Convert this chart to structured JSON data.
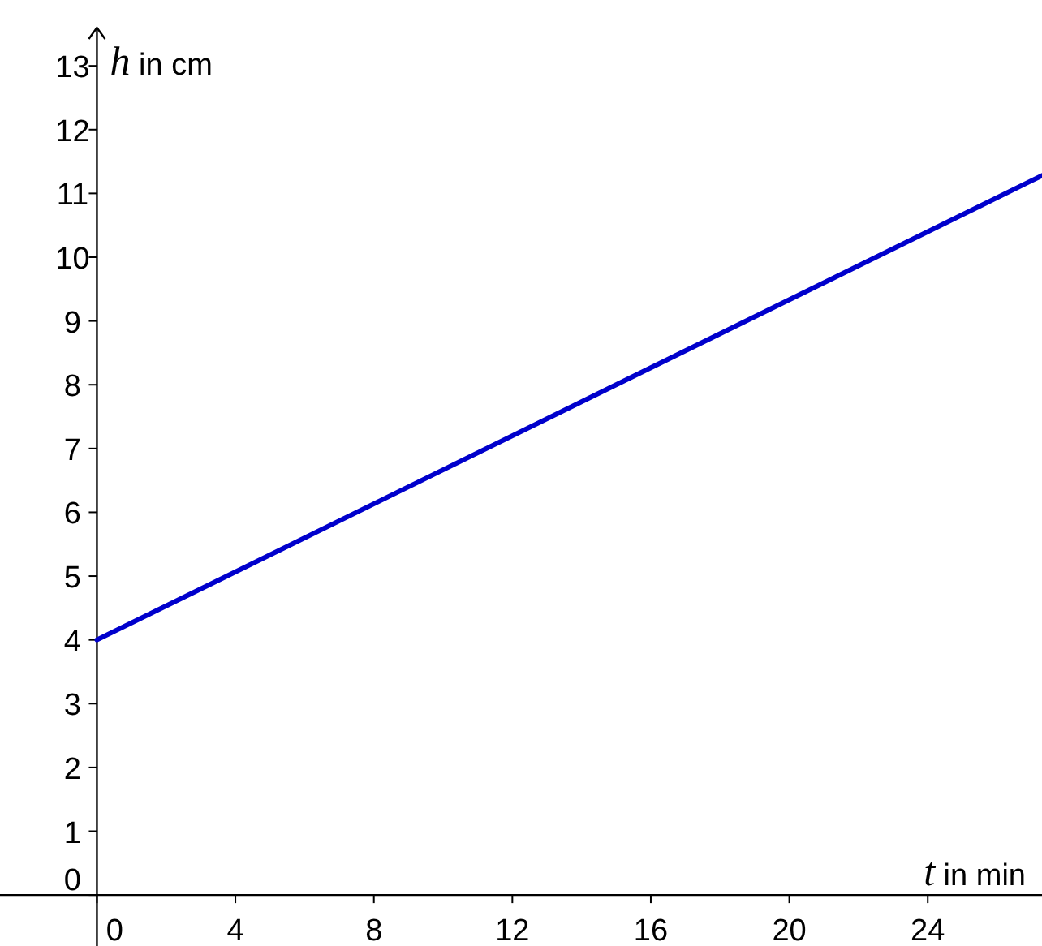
{
  "chart_data": {
    "type": "line",
    "xlabel": "t in min",
    "ylabel": "h in cm",
    "x": [
      0,
      27.3
    ],
    "series": [
      {
        "color": "#0000cc",
        "values": [
          4,
          11.28
        ]
      }
    ],
    "xlim": [
      -2.8,
      27.3
    ],
    "ylim": [
      -0.8,
      13.6
    ],
    "xticks": [
      0,
      4,
      8,
      12,
      16,
      20,
      24
    ],
    "yticks": [
      0,
      1,
      2,
      3,
      4,
      5,
      6,
      7,
      8,
      9,
      10,
      11,
      12,
      13
    ],
    "marker": "none",
    "line_style": "solid"
  }
}
